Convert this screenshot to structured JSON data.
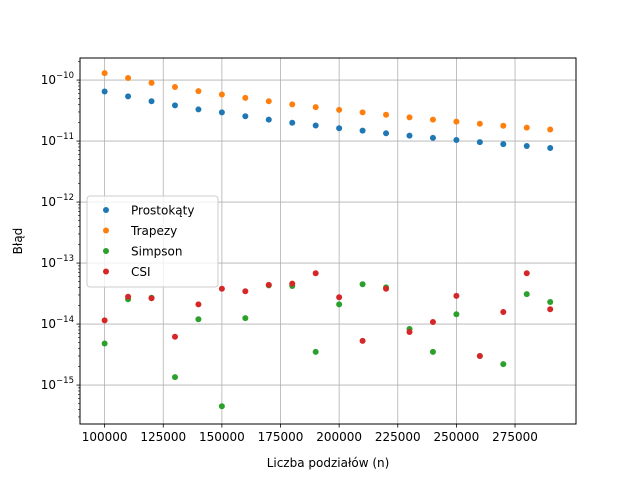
{
  "chart_data": {
    "type": "scatter",
    "title": "",
    "xlabel": "Liczba podziałów (n)",
    "ylabel": "Błąd",
    "y_scale": "log",
    "grid": true,
    "legend_position": "center-left",
    "xlim": [
      89500,
      301000
    ],
    "ylim": [
      2.3e-16,
      2.3e-10
    ],
    "x_ticks": [
      {
        "value": 100000,
        "label": "100000"
      },
      {
        "value": 125000,
        "label": "125000"
      },
      {
        "value": 150000,
        "label": "150000"
      },
      {
        "value": 175000,
        "label": "175000"
      },
      {
        "value": 200000,
        "label": "200000"
      },
      {
        "value": 225000,
        "label": "225000"
      },
      {
        "value": 250000,
        "label": "250000"
      },
      {
        "value": 275000,
        "label": "275000"
      }
    ],
    "y_ticks": [
      {
        "exp": -15,
        "base": "10",
        "sup": "−15"
      },
      {
        "exp": -14,
        "base": "10",
        "sup": "−14"
      },
      {
        "exp": -13,
        "base": "10",
        "sup": "−13"
      },
      {
        "exp": -12,
        "base": "10",
        "sup": "−12"
      },
      {
        "exp": -11,
        "base": "10",
        "sup": "−11"
      },
      {
        "exp": -10,
        "base": "10",
        "sup": "−10"
      }
    ],
    "x": [
      100000,
      110000,
      120000,
      130000,
      140000,
      150000,
      160000,
      170000,
      180000,
      190000,
      200000,
      210000,
      220000,
      230000,
      240000,
      250000,
      260000,
      270000,
      280000,
      290000
    ],
    "series": [
      {
        "name": "Prostokąty",
        "color": "#1f77b4",
        "points": [
          [
            100000,
            6.5e-11
          ],
          [
            110000,
            5.4e-11
          ],
          [
            120000,
            4.5e-11
          ],
          [
            130000,
            3.85e-11
          ],
          [
            140000,
            3.3e-11
          ],
          [
            150000,
            2.95e-11
          ],
          [
            160000,
            2.55e-11
          ],
          [
            170000,
            2.25e-11
          ],
          [
            180000,
            2e-11
          ],
          [
            190000,
            1.8e-11
          ],
          [
            200000,
            1.62e-11
          ],
          [
            210000,
            1.48e-11
          ],
          [
            220000,
            1.34e-11
          ],
          [
            230000,
            1.23e-11
          ],
          [
            240000,
            1.13e-11
          ],
          [
            250000,
            1.04e-11
          ],
          [
            260000,
            9.6e-12
          ],
          [
            270000,
            8.9e-12
          ],
          [
            280000,
            8.3e-12
          ],
          [
            290000,
            7.7e-12
          ]
        ]
      },
      {
        "name": "Trapezy",
        "color": "#ff7f0e",
        "points": [
          [
            100000,
            1.3e-10
          ],
          [
            110000,
            1.08e-10
          ],
          [
            120000,
            9e-11
          ],
          [
            130000,
            7.7e-11
          ],
          [
            140000,
            6.6e-11
          ],
          [
            150000,
            5.8e-11
          ],
          [
            160000,
            5.1e-11
          ],
          [
            170000,
            4.5e-11
          ],
          [
            180000,
            4e-11
          ],
          [
            190000,
            3.6e-11
          ],
          [
            200000,
            3.25e-11
          ],
          [
            210000,
            2.95e-11
          ],
          [
            220000,
            2.7e-11
          ],
          [
            230000,
            2.45e-11
          ],
          [
            240000,
            2.25e-11
          ],
          [
            250000,
            2.08e-11
          ],
          [
            260000,
            1.92e-11
          ],
          [
            270000,
            1.78e-11
          ],
          [
            280000,
            1.66e-11
          ],
          [
            290000,
            1.55e-11
          ]
        ]
      },
      {
        "name": "Simpson",
        "color": "#2ca02c",
        "points": [
          [
            100000,
            4.8e-15
          ],
          [
            110000,
            2.55e-14
          ],
          [
            120000,
            2.7e-14
          ],
          [
            130000,
            1.35e-15
          ],
          [
            140000,
            1.2e-14
          ],
          [
            150000,
            4.5e-16
          ],
          [
            160000,
            1.25e-14
          ],
          [
            170000,
            4.3e-14
          ],
          [
            180000,
            4.2e-14
          ],
          [
            190000,
            3.5e-15
          ],
          [
            200000,
            2.1e-14
          ],
          [
            210000,
            4.5e-14
          ],
          [
            220000,
            4e-14
          ],
          [
            230000,
            8.3e-15
          ],
          [
            240000,
            3.5e-15
          ],
          [
            250000,
            1.45e-14
          ],
          [
            260000,
            3e-15
          ],
          [
            270000,
            2.2e-15
          ],
          [
            280000,
            3.1e-14
          ],
          [
            290000,
            2.3e-14
          ]
        ]
      },
      {
        "name": "CSI",
        "color": "#d62728",
        "points": [
          [
            100000,
            1.15e-14
          ],
          [
            110000,
            2.8e-14
          ],
          [
            120000,
            2.65e-14
          ],
          [
            130000,
            6.2e-15
          ],
          [
            140000,
            2.1e-14
          ],
          [
            150000,
            3.8e-14
          ],
          [
            160000,
            3.45e-14
          ],
          [
            170000,
            4.4e-14
          ],
          [
            180000,
            4.6e-14
          ],
          [
            190000,
            6.8e-14
          ],
          [
            200000,
            2.75e-14
          ],
          [
            210000,
            5.3e-15
          ],
          [
            220000,
            3.8e-14
          ],
          [
            230000,
            7.4e-15
          ],
          [
            240000,
            1.08e-14
          ],
          [
            250000,
            2.9e-14
          ],
          [
            260000,
            3e-15
          ],
          [
            270000,
            1.58e-14
          ],
          [
            280000,
            6.8e-14
          ],
          [
            290000,
            1.75e-14
          ]
        ]
      }
    ]
  }
}
